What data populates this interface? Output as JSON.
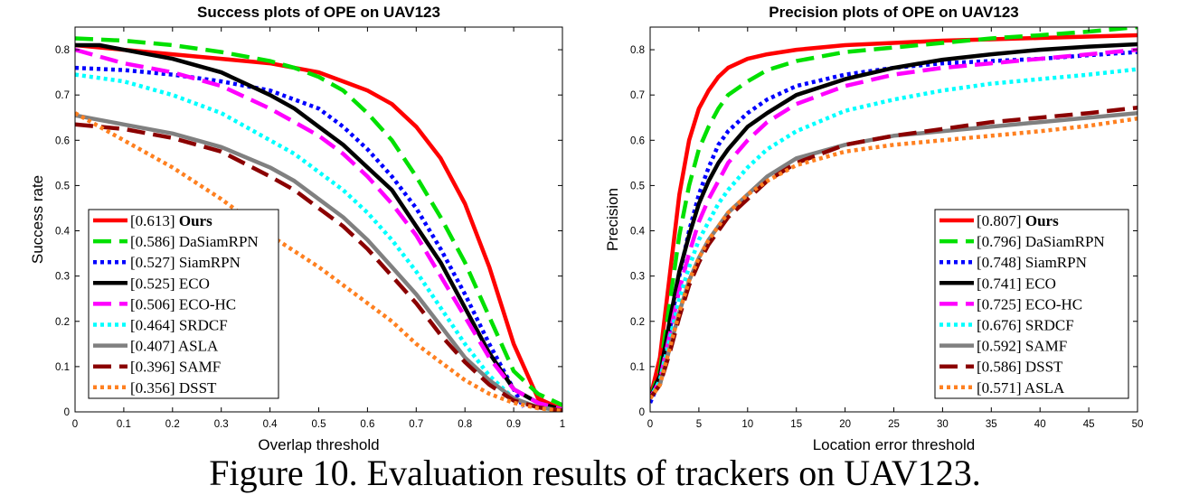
{
  "caption": "Figure 10. Evaluation results of trackers on UAV123.",
  "chart_data": [
    {
      "type": "line",
      "title": "Success plots of OPE on UAV123",
      "xlabel": "Overlap threshold",
      "ylabel": "Success rate",
      "xlim": [
        0,
        1
      ],
      "ylim": [
        0,
        0.85
      ],
      "xticks": [
        0,
        0.1,
        0.2,
        0.3,
        0.4,
        0.5,
        0.6,
        0.7,
        0.8,
        0.9,
        1
      ],
      "xtick_labels": [
        "0",
        "0.1",
        "0.2",
        "0.3",
        "0.4",
        "0.5",
        "0.6",
        "0.7",
        "0.8",
        "0.9",
        "1"
      ],
      "yticks": [
        0,
        0.1,
        0.2,
        0.3,
        0.4,
        0.5,
        0.6,
        0.7,
        0.8
      ],
      "ytick_labels": [
        "0",
        "0.1",
        "0.2",
        "0.3",
        "0.4",
        "0.5",
        "0.6",
        "0.7",
        "0.8"
      ],
      "grid": false,
      "legend_position": "bottom-left",
      "series": [
        {
          "name": "Ours",
          "score": "0.613",
          "bold": true,
          "color": "#ff0000",
          "dash": "solid",
          "x": [
            0,
            0.1,
            0.2,
            0.3,
            0.4,
            0.45,
            0.5,
            0.55,
            0.6,
            0.65,
            0.7,
            0.75,
            0.8,
            0.85,
            0.9,
            0.95,
            1
          ],
          "y": [
            0.81,
            0.8,
            0.79,
            0.78,
            0.77,
            0.76,
            0.75,
            0.73,
            0.71,
            0.68,
            0.63,
            0.56,
            0.46,
            0.32,
            0.15,
            0.03,
            0.005
          ]
        },
        {
          "name": "DaSiamRPN",
          "score": "0.586",
          "bold": false,
          "color": "#00e000",
          "dash": "dash",
          "x": [
            0,
            0.1,
            0.2,
            0.3,
            0.4,
            0.45,
            0.5,
            0.55,
            0.6,
            0.65,
            0.7,
            0.75,
            0.8,
            0.85,
            0.9,
            0.95,
            1
          ],
          "y": [
            0.825,
            0.82,
            0.81,
            0.795,
            0.775,
            0.76,
            0.74,
            0.71,
            0.66,
            0.6,
            0.52,
            0.43,
            0.33,
            0.21,
            0.09,
            0.04,
            0.015
          ]
        },
        {
          "name": "SiamRPN",
          "score": "0.527",
          "bold": false,
          "color": "#0000ff",
          "dash": "dot",
          "x": [
            0,
            0.1,
            0.2,
            0.3,
            0.4,
            0.5,
            0.55,
            0.6,
            0.65,
            0.7,
            0.75,
            0.8,
            0.85,
            0.9,
            0.92
          ],
          "y": [
            0.76,
            0.755,
            0.745,
            0.73,
            0.71,
            0.67,
            0.63,
            0.58,
            0.52,
            0.45,
            0.36,
            0.26,
            0.15,
            0.05,
            0.01
          ]
        },
        {
          "name": "ECO",
          "score": "0.525",
          "bold": false,
          "color": "#000000",
          "dash": "solid",
          "x": [
            0,
            0.05,
            0.1,
            0.2,
            0.3,
            0.4,
            0.45,
            0.5,
            0.55,
            0.6,
            0.65,
            0.7,
            0.75,
            0.8,
            0.85,
            0.9,
            0.95,
            1
          ],
          "y": [
            0.81,
            0.81,
            0.8,
            0.78,
            0.75,
            0.7,
            0.67,
            0.63,
            0.59,
            0.54,
            0.49,
            0.41,
            0.33,
            0.23,
            0.13,
            0.05,
            0.02,
            0.005
          ]
        },
        {
          "name": "ECO-HC",
          "score": "0.506",
          "bold": false,
          "color": "#ff00ff",
          "dash": "dash",
          "x": [
            0,
            0.1,
            0.2,
            0.3,
            0.4,
            0.45,
            0.5,
            0.55,
            0.6,
            0.65,
            0.7,
            0.75,
            0.8,
            0.85,
            0.9,
            0.95,
            1
          ],
          "y": [
            0.8,
            0.77,
            0.75,
            0.72,
            0.67,
            0.64,
            0.61,
            0.57,
            0.52,
            0.46,
            0.39,
            0.3,
            0.21,
            0.12,
            0.05,
            0.02,
            0.005
          ]
        },
        {
          "name": "SRDCF",
          "score": "0.464",
          "bold": false,
          "color": "#00ffff",
          "dash": "dot",
          "x": [
            0,
            0.1,
            0.2,
            0.3,
            0.4,
            0.45,
            0.5,
            0.55,
            0.6,
            0.65,
            0.7,
            0.75,
            0.8,
            0.85,
            0.9,
            0.95,
            1
          ],
          "y": [
            0.745,
            0.73,
            0.7,
            0.66,
            0.6,
            0.57,
            0.53,
            0.49,
            0.44,
            0.38,
            0.31,
            0.23,
            0.15,
            0.08,
            0.03,
            0.01,
            0.003
          ]
        },
        {
          "name": "ASLA",
          "score": "0.407",
          "bold": false,
          "color": "#808080",
          "dash": "solid",
          "x": [
            0,
            0.1,
            0.2,
            0.3,
            0.4,
            0.45,
            0.5,
            0.55,
            0.6,
            0.65,
            0.7,
            0.75,
            0.8,
            0.85,
            0.9,
            0.95,
            1
          ],
          "y": [
            0.655,
            0.635,
            0.615,
            0.585,
            0.54,
            0.51,
            0.47,
            0.43,
            0.38,
            0.32,
            0.26,
            0.19,
            0.12,
            0.07,
            0.03,
            0.01,
            0.003
          ]
        },
        {
          "name": "SAMF",
          "score": "0.396",
          "bold": false,
          "color": "#8b0000",
          "dash": "dash",
          "x": [
            0,
            0.1,
            0.2,
            0.3,
            0.4,
            0.45,
            0.5,
            0.55,
            0.6,
            0.65,
            0.7,
            0.75,
            0.8,
            0.85,
            0.9,
            0.95,
            1
          ],
          "y": [
            0.635,
            0.625,
            0.605,
            0.575,
            0.52,
            0.49,
            0.45,
            0.41,
            0.36,
            0.3,
            0.24,
            0.17,
            0.11,
            0.06,
            0.025,
            0.01,
            0.003
          ]
        },
        {
          "name": "DSST",
          "score": "0.356",
          "bold": false,
          "color": "#ff8020",
          "dash": "dot",
          "x": [
            0,
            0.1,
            0.2,
            0.3,
            0.4,
            0.5,
            0.55,
            0.6,
            0.65,
            0.7,
            0.75,
            0.8,
            0.85,
            0.9,
            0.95,
            1
          ],
          "y": [
            0.66,
            0.6,
            0.54,
            0.47,
            0.39,
            0.32,
            0.28,
            0.24,
            0.2,
            0.15,
            0.11,
            0.07,
            0.04,
            0.02,
            0.008,
            0.002
          ]
        }
      ]
    },
    {
      "type": "line",
      "title": "Precision plots of OPE on UAV123",
      "xlabel": "Location error threshold",
      "ylabel": "Precision",
      "xlim": [
        0,
        50
      ],
      "ylim": [
        0,
        0.85
      ],
      "xticks": [
        0,
        5,
        10,
        15,
        20,
        25,
        30,
        35,
        40,
        45,
        50
      ],
      "xtick_labels": [
        "0",
        "5",
        "10",
        "15",
        "20",
        "25",
        "30",
        "35",
        "40",
        "45",
        "50"
      ],
      "yticks": [
        0,
        0.1,
        0.2,
        0.3,
        0.4,
        0.5,
        0.6,
        0.7,
        0.8
      ],
      "ytick_labels": [
        "0",
        "0.1",
        "0.2",
        "0.3",
        "0.4",
        "0.5",
        "0.6",
        "0.7",
        "0.8"
      ],
      "grid": false,
      "legend_position": "bottom-right",
      "series": [
        {
          "name": "Ours",
          "score": "0.807",
          "bold": true,
          "color": "#ff0000",
          "dash": "solid",
          "x": [
            0,
            1,
            2,
            3,
            4,
            5,
            6,
            7,
            8,
            10,
            12,
            15,
            20,
            25,
            30,
            35,
            40,
            45,
            50
          ],
          "y": [
            0.03,
            0.12,
            0.3,
            0.48,
            0.6,
            0.67,
            0.71,
            0.74,
            0.76,
            0.78,
            0.79,
            0.8,
            0.81,
            0.815,
            0.82,
            0.823,
            0.826,
            0.829,
            0.832
          ]
        },
        {
          "name": "DaSiamRPN",
          "score": "0.796",
          "bold": false,
          "color": "#00e000",
          "dash": "dash",
          "x": [
            0,
            1,
            2,
            3,
            4,
            5,
            6,
            7,
            8,
            10,
            12,
            15,
            20,
            25,
            30,
            35,
            40,
            45,
            50
          ],
          "y": [
            0.03,
            0.09,
            0.24,
            0.39,
            0.5,
            0.58,
            0.63,
            0.67,
            0.7,
            0.73,
            0.755,
            0.775,
            0.795,
            0.805,
            0.815,
            0.825,
            0.832,
            0.84,
            0.85
          ]
        },
        {
          "name": "SiamRPN",
          "score": "0.748",
          "bold": false,
          "color": "#0000ff",
          "dash": "dot",
          "x": [
            0,
            1,
            2,
            3,
            4,
            5,
            6,
            7,
            8,
            10,
            12,
            15,
            20,
            25,
            30,
            35,
            40,
            45,
            50
          ],
          "y": [
            0.02,
            0.07,
            0.18,
            0.3,
            0.4,
            0.48,
            0.54,
            0.59,
            0.62,
            0.66,
            0.69,
            0.72,
            0.745,
            0.76,
            0.77,
            0.775,
            0.78,
            0.788,
            0.795
          ]
        },
        {
          "name": "ECO",
          "score": "0.741",
          "bold": false,
          "color": "#000000",
          "dash": "solid",
          "x": [
            0,
            1,
            2,
            3,
            4,
            5,
            6,
            7,
            8,
            10,
            12,
            15,
            20,
            25,
            30,
            35,
            40,
            45,
            50
          ],
          "y": [
            0.03,
            0.08,
            0.2,
            0.31,
            0.39,
            0.46,
            0.51,
            0.55,
            0.58,
            0.63,
            0.66,
            0.7,
            0.735,
            0.76,
            0.778,
            0.79,
            0.8,
            0.807,
            0.812
          ]
        },
        {
          "name": "ECO-HC",
          "score": "0.725",
          "bold": false,
          "color": "#ff00ff",
          "dash": "dash",
          "x": [
            0,
            1,
            2,
            3,
            4,
            5,
            6,
            7,
            8,
            10,
            12,
            15,
            20,
            25,
            30,
            35,
            40,
            45,
            50
          ],
          "y": [
            0.03,
            0.07,
            0.17,
            0.27,
            0.35,
            0.42,
            0.47,
            0.51,
            0.55,
            0.6,
            0.64,
            0.68,
            0.72,
            0.745,
            0.76,
            0.77,
            0.78,
            0.79,
            0.8
          ]
        },
        {
          "name": "SRDCF",
          "score": "0.676",
          "bold": false,
          "color": "#00ffff",
          "dash": "dot",
          "x": [
            0,
            1,
            2,
            3,
            4,
            5,
            6,
            7,
            8,
            10,
            12,
            15,
            20,
            25,
            30,
            35,
            40,
            45,
            50
          ],
          "y": [
            0.03,
            0.07,
            0.16,
            0.25,
            0.32,
            0.38,
            0.42,
            0.46,
            0.49,
            0.54,
            0.58,
            0.62,
            0.665,
            0.69,
            0.71,
            0.725,
            0.735,
            0.745,
            0.757
          ]
        },
        {
          "name": "SAMF",
          "score": "0.592",
          "bold": false,
          "color": "#808080",
          "dash": "solid",
          "x": [
            0,
            1,
            2,
            3,
            4,
            5,
            6,
            7,
            8,
            10,
            12,
            15,
            20,
            25,
            30,
            35,
            40,
            45,
            50
          ],
          "y": [
            0.03,
            0.06,
            0.14,
            0.22,
            0.29,
            0.34,
            0.38,
            0.41,
            0.44,
            0.48,
            0.52,
            0.56,
            0.59,
            0.61,
            0.62,
            0.63,
            0.64,
            0.65,
            0.66
          ]
        },
        {
          "name": "DSST",
          "score": "0.586",
          "bold": false,
          "color": "#8b0000",
          "dash": "dash",
          "x": [
            0,
            1,
            2,
            3,
            4,
            5,
            6,
            7,
            8,
            10,
            12,
            15,
            20,
            25,
            30,
            35,
            40,
            45,
            50
          ],
          "y": [
            0.03,
            0.06,
            0.13,
            0.21,
            0.28,
            0.33,
            0.37,
            0.4,
            0.43,
            0.47,
            0.51,
            0.55,
            0.59,
            0.61,
            0.625,
            0.64,
            0.65,
            0.66,
            0.672
          ]
        },
        {
          "name": "ASLA",
          "score": "0.571",
          "bold": false,
          "color": "#ff8020",
          "dash": "dot",
          "x": [
            0,
            1,
            2,
            3,
            4,
            5,
            6,
            7,
            8,
            10,
            12,
            15,
            20,
            25,
            30,
            35,
            40,
            45,
            50
          ],
          "y": [
            0.03,
            0.06,
            0.14,
            0.22,
            0.29,
            0.34,
            0.38,
            0.41,
            0.44,
            0.48,
            0.51,
            0.545,
            0.575,
            0.59,
            0.6,
            0.61,
            0.62,
            0.632,
            0.648
          ]
        }
      ]
    }
  ]
}
